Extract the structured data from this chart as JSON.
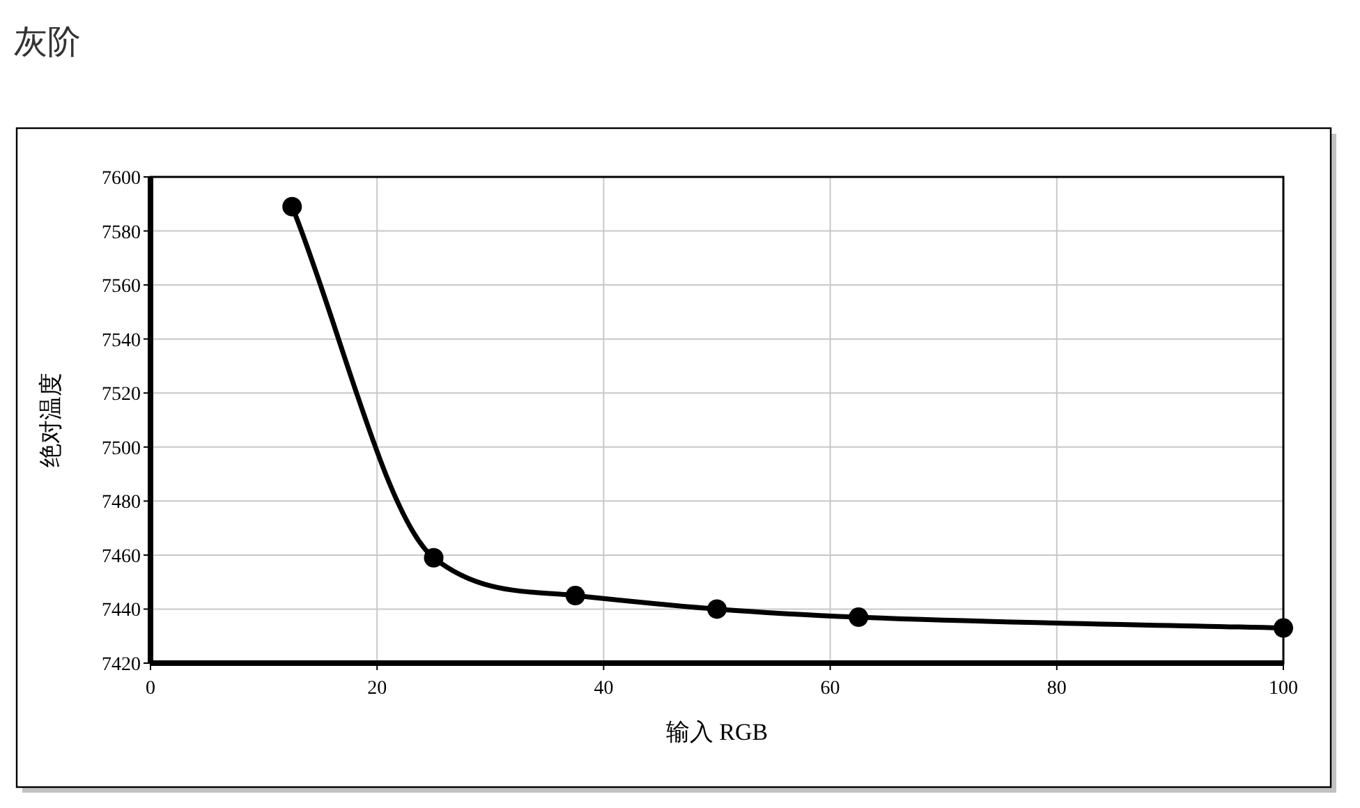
{
  "chart_data": {
    "type": "line",
    "title": "灰阶",
    "xlabel": "输入 RGB",
    "ylabel": "绝对温度",
    "x": [
      12.5,
      25,
      37.5,
      50,
      62.5,
      100
    ],
    "series": [
      {
        "color": "#000000",
        "values": [
          7589,
          7459,
          7445,
          7440,
          7437,
          7433
        ]
      }
    ],
    "xlim": [
      0,
      100
    ],
    "xticks": [
      0,
      20,
      40,
      60,
      80,
      100
    ],
    "ylim": [
      7420,
      7600
    ],
    "yticks": [
      7420,
      7440,
      7460,
      7480,
      7500,
      7520,
      7540,
      7560,
      7580,
      7600
    ],
    "grid": true,
    "marker": "circle",
    "line_style": "solid"
  }
}
